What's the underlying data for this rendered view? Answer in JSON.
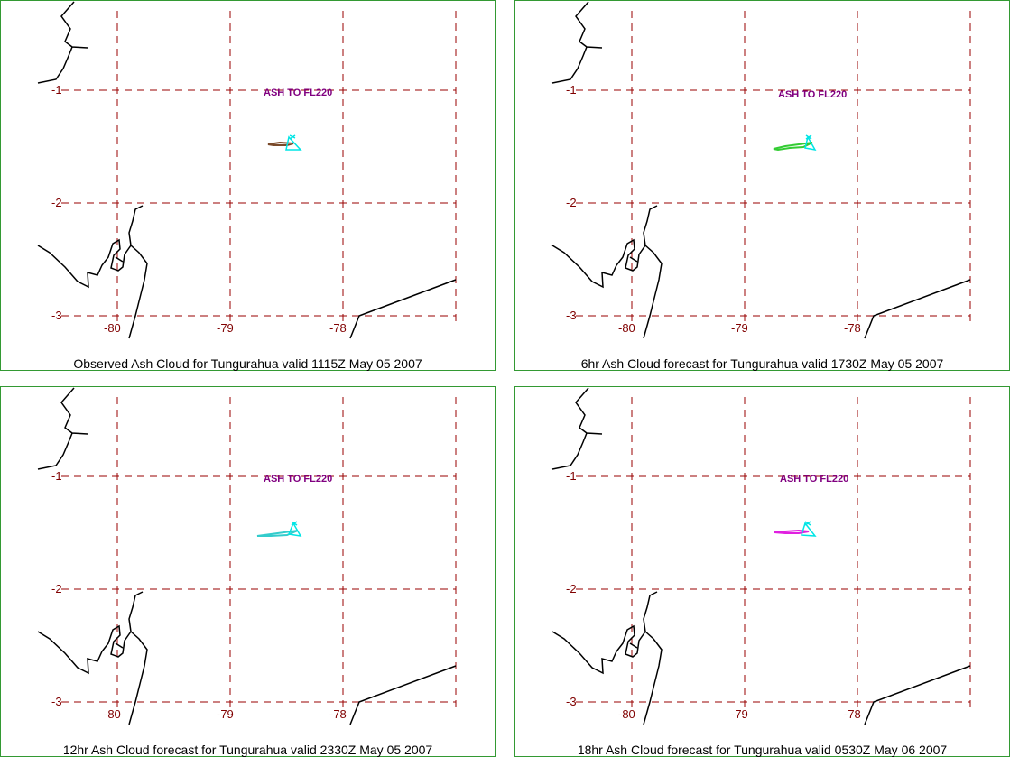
{
  "panels": [
    {
      "caption": "Observed Ash Cloud for Tungurahua valid 1115Z May 05 2007",
      "ash_label": "ASH TO FL220",
      "cloud_color": "#7a4a2a",
      "lat_labels": [
        "-1",
        "-2",
        "-3"
      ],
      "lon_labels": [
        "-80",
        "-79",
        "-78"
      ]
    },
    {
      "caption": "6hr Ash Cloud forecast for Tungurahua valid 1730Z May 05 2007",
      "ash_label": "ASH TO FL220",
      "cloud_color": "#33cc33",
      "lat_labels": [
        "-1",
        "-2",
        "-3"
      ],
      "lon_labels": [
        "-80",
        "-79",
        "-78"
      ]
    },
    {
      "caption": "12hr Ash Cloud forecast for Tungurahua valid 2330Z May 05 2007",
      "ash_label": "ASH TO FL220",
      "cloud_color": "#33cccc",
      "lat_labels": [
        "-1",
        "-2",
        "-3"
      ],
      "lon_labels": [
        "-80",
        "-79",
        "-78"
      ]
    },
    {
      "caption": "18hr Ash Cloud forecast for Tungurahua valid 0530Z May 06 2007",
      "ash_label": "ASH TO FL220",
      "cloud_color": "#e020e0",
      "lat_labels": [
        "-1",
        "-2",
        "-3"
      ],
      "lon_labels": [
        "-80",
        "-79",
        "-78"
      ]
    }
  ],
  "colors": {
    "panel_border": "#339933",
    "grid": "#990000",
    "coastline": "#000000",
    "volcano_marker": "#00e5e5",
    "label_text": "#800000",
    "ash_text": "#800080"
  }
}
